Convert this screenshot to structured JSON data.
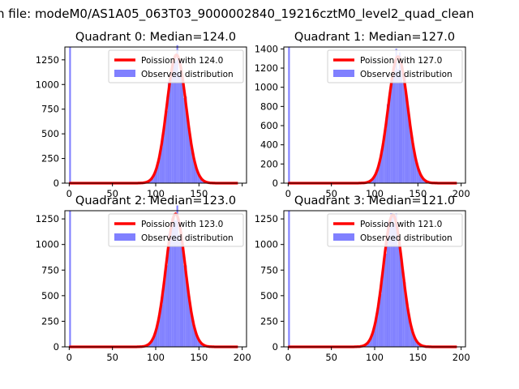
{
  "figure": {
    "suptitle": "n file: modeM0/AS1A05_063T03_9000002840_19216cztM0_level2_quad_clean"
  },
  "colors": {
    "poisson_line": "#ff0000",
    "observed_bars": "#8080ff",
    "zero_bar": "#8080ff"
  },
  "legend": {
    "observed_label": "Observed distribution"
  },
  "chart_data": [
    {
      "type": "histogram+line",
      "title": "Quadrant 0: Median=124.0",
      "median": 124.0,
      "poisson_label": "Poission with 124.0",
      "peak": 1300,
      "zero_bin_count": 1380,
      "xlim": [
        -5,
        205
      ],
      "ylim": [
        0,
        1380
      ],
      "xticks": [
        "0",
        "50",
        "100",
        "150",
        ""
      ],
      "yticks": [
        "0",
        "250",
        "500",
        "750",
        "1000",
        "1250"
      ],
      "legend_position": "upper right"
    },
    {
      "type": "histogram+line",
      "title": "Quadrant 1: Median=127.0",
      "median": 127.0,
      "poisson_label": "Poission with 127.0",
      "peak": 1320,
      "zero_bin_count": 1420,
      "xlim": [
        -5,
        205
      ],
      "ylim": [
        0,
        1420
      ],
      "xticks": [
        "0",
        "50",
        "100",
        "150",
        "200"
      ],
      "yticks": [
        "0",
        "200",
        "400",
        "600",
        "800",
        "1000",
        "1200",
        "1400"
      ],
      "legend_position": "upper right"
    },
    {
      "type": "histogram+line",
      "title": "Quadrant 2: Median=123.0",
      "median": 123.0,
      "poisson_label": "Poission with 123.0",
      "peak": 1300,
      "zero_bin_count": 1330,
      "xlim": [
        -5,
        205
      ],
      "ylim": [
        0,
        1330
      ],
      "xticks": [
        "0",
        "50",
        "100",
        "150",
        "200"
      ],
      "yticks": [
        "0",
        "250",
        "500",
        "750",
        "1000",
        "1250"
      ],
      "legend_position": "upper right"
    },
    {
      "type": "histogram+line",
      "title": "Quadrant 3: Median=121.0",
      "median": 121.0,
      "poisson_label": "Poission with 121.0",
      "peak": 1290,
      "zero_bin_count": 1330,
      "xlim": [
        -5,
        205
      ],
      "ylim": [
        0,
        1330
      ],
      "xticks": [
        "0",
        "50",
        "100",
        "150",
        "200"
      ],
      "yticks": [
        "0",
        "250",
        "500",
        "750",
        "1000",
        "1250"
      ],
      "legend_position": "upper right"
    }
  ]
}
